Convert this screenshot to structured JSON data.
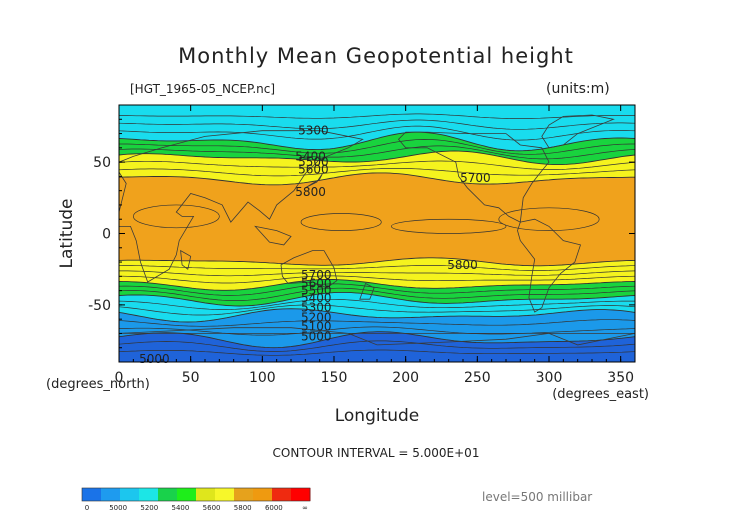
{
  "title": "Monthly Mean Geopotential height",
  "file_label": "[HGT_1965-05_NCEP.nc]",
  "units_label": "(units:m)",
  "contour_interval": "CONTOUR INTERVAL = 5.000E+01",
  "level_label": "level=500 millibar",
  "chart_data": {
    "type": "heatmap",
    "title": "Monthly Mean Geopotential height",
    "xlabel": "Longitude",
    "ylabel": "Latitude",
    "x_unit_label": "(degrees_east)",
    "y_unit_label": "(degrees_north)",
    "xlim": [
      0,
      360
    ],
    "ylim": [
      -90,
      90
    ],
    "x_ticks": [
      0,
      50,
      100,
      150,
      200,
      250,
      300,
      350
    ],
    "y_ticks": [
      -50,
      0,
      50
    ],
    "contour_labels": [
      {
        "text": "5300",
        "lon": 125,
        "lat": 72
      },
      {
        "text": "5400",
        "lon": 123,
        "lat": 54
      },
      {
        "text": "5500",
        "lon": 125,
        "lat": 50
      },
      {
        "text": "5600",
        "lon": 125,
        "lat": 45
      },
      {
        "text": "5700",
        "lon": 238,
        "lat": 39
      },
      {
        "text": "5800",
        "lon": 123,
        "lat": 29
      },
      {
        "text": "5800",
        "lon": 229,
        "lat": -22
      },
      {
        "text": "5700",
        "lon": 127,
        "lat": -29
      },
      {
        "text": "5600",
        "lon": 127,
        "lat": -35
      },
      {
        "text": "5500",
        "lon": 127,
        "lat": -40
      },
      {
        "text": "5400",
        "lon": 127,
        "lat": -45
      },
      {
        "text": "5300",
        "lon": 127,
        "lat": -52
      },
      {
        "text": "5200",
        "lon": 127,
        "lat": -59
      },
      {
        "text": "5100",
        "lon": 127,
        "lat": -65
      },
      {
        "text": "5000",
        "lon": 127,
        "lat": -72
      },
      {
        "text": "5000",
        "lon": 14,
        "lat": -88
      }
    ],
    "colorbar": {
      "tick_labels": [
        "0",
        "5000",
        "5200",
        "5400",
        "5600",
        "5800",
        "6000",
        "∞"
      ],
      "colors": [
        "#1a73e8",
        "#1e9bef",
        "#1cc6ee",
        "#1ce6e6",
        "#19d24b",
        "#1eee1a",
        "#dfe61c",
        "#f7f72a",
        "#e6a21c",
        "#ef9a10",
        "#ef2a10",
        "#ff0000"
      ]
    },
    "colors": {
      "dark_blue": "#1f63d9",
      "blue": "#1b99ea",
      "light_blue": "#19dcee",
      "green": "#19d33e",
      "light_green": "#3ee52d",
      "yellow": "#f5f31e",
      "orange": "#f0a21c",
      "contour_line": "#333333"
    }
  }
}
